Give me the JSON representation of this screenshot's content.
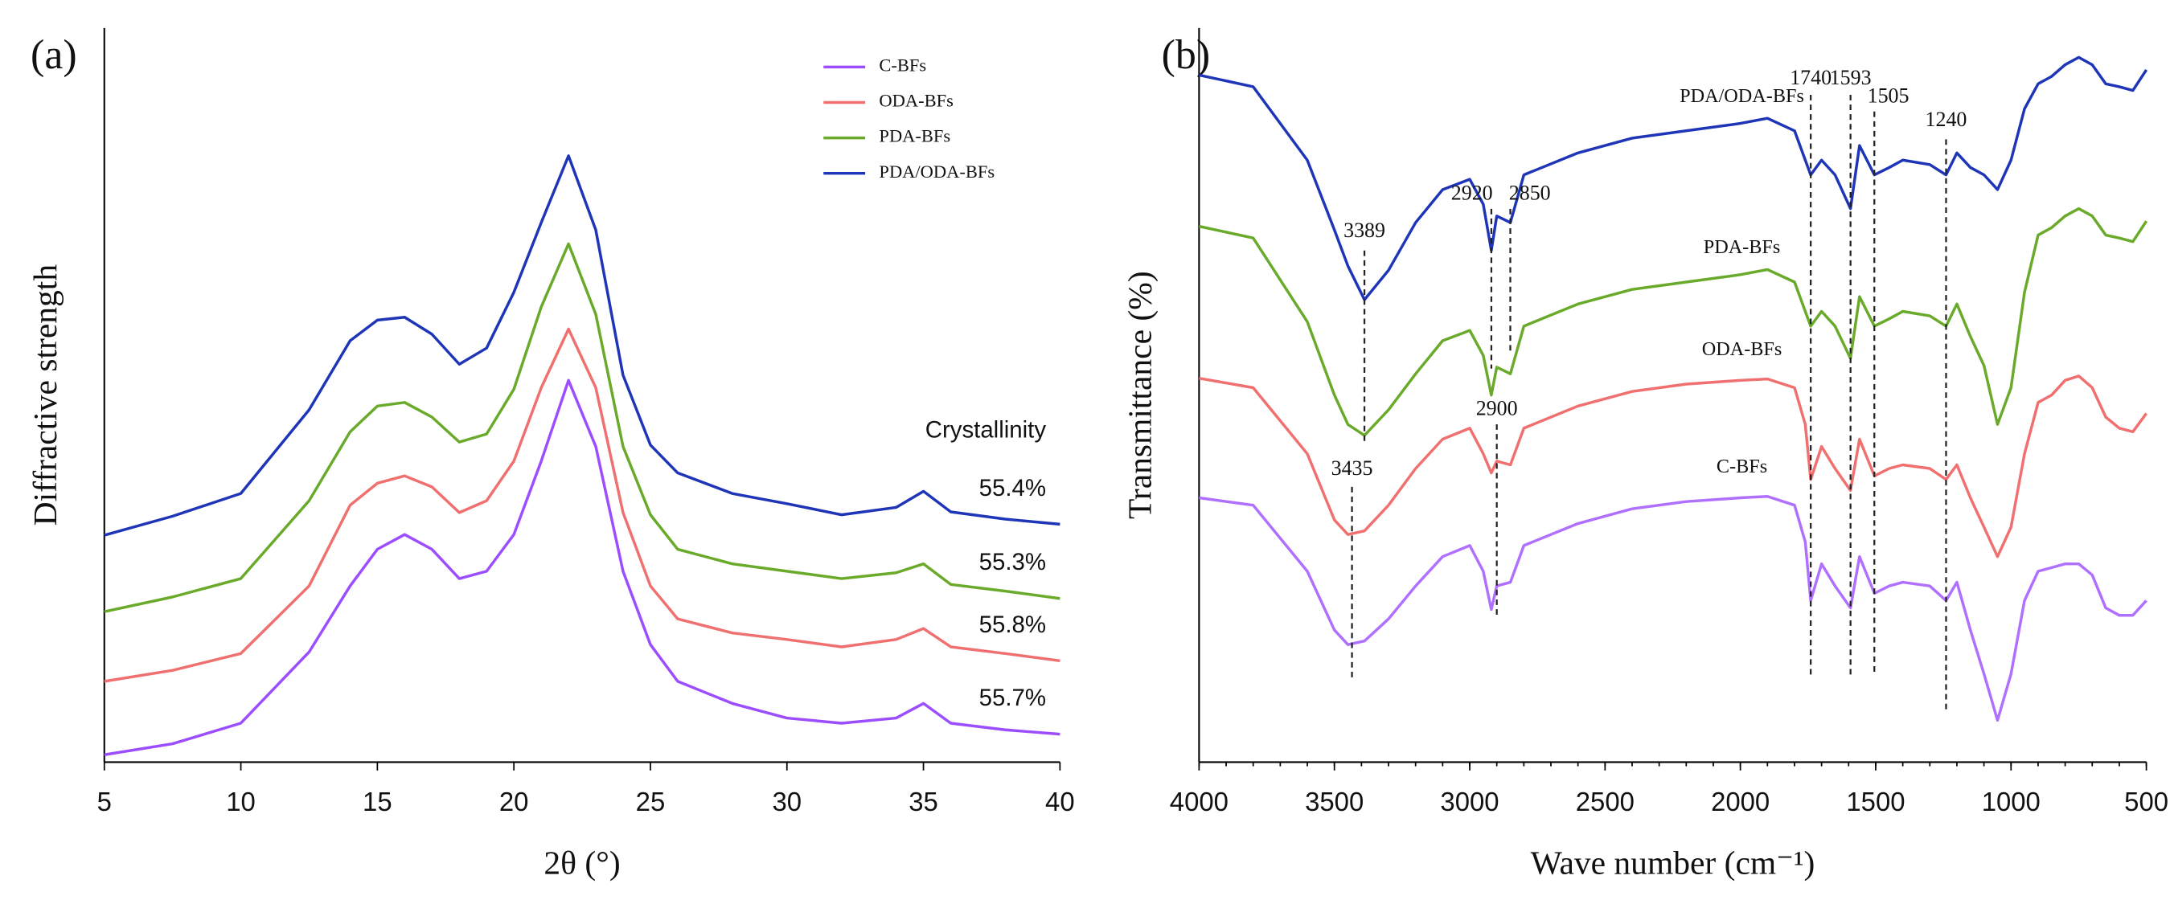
{
  "chart_data": [
    {
      "type": "line",
      "panel_label": "(a)",
      "xlabel": "2θ (°)",
      "ylabel": "Diffractive strength",
      "xlim": [
        5,
        40
      ],
      "xticks": [
        5,
        10,
        15,
        20,
        25,
        30,
        35,
        40
      ],
      "ylim": [
        0,
        100
      ],
      "annotation_title": "Crystallinity",
      "x": [
        5,
        7.5,
        10,
        12.5,
        14,
        15,
        16,
        17,
        18,
        19,
        20,
        21,
        22,
        23,
        24,
        25,
        26,
        28,
        30,
        32,
        34,
        35,
        36,
        38,
        40
      ],
      "series": [
        {
          "name": "C-BFs",
          "color": "#9b4dff",
          "crystallinity_label": "55.7%",
          "values": [
            1,
            2.5,
            5.3,
            15,
            24,
            29,
            31,
            29,
            25,
            26,
            31,
            41,
            52,
            43,
            26,
            16,
            11,
            8,
            6,
            5.3,
            6,
            8,
            5.3,
            4.4,
            3.8
          ]
        },
        {
          "name": "ODA-BFs",
          "color": "#f07070",
          "crystallinity_label": "55.8%",
          "values": [
            11,
            12.5,
            14.8,
            24,
            35,
            38,
            39,
            37.5,
            34,
            35.6,
            41,
            51,
            59,
            51,
            34,
            24,
            19.5,
            17.6,
            16.7,
            15.7,
            16.7,
            18.2,
            15.7,
            14.8,
            13.8
          ]
        },
        {
          "name": "PDA-BFs",
          "color": "#6aaa2a",
          "crystallinity_label": "55.3%",
          "values": [
            20.5,
            22.5,
            25,
            35.6,
            45,
            48.5,
            49,
            47,
            43.6,
            44.7,
            50.8,
            62,
            70.6,
            61,
            43,
            33.7,
            29,
            27,
            26,
            25,
            25.8,
            27,
            24.2,
            23.3,
            22.3
          ]
        },
        {
          "name": "PDA/ODA-BFs",
          "color": "#1f35b8",
          "crystallinity_label": "55.4%",
          "values": [
            30.9,
            33.5,
            36.6,
            48,
            57.4,
            60.2,
            60.6,
            58.3,
            54.2,
            56.4,
            64,
            73.5,
            82.6,
            72.5,
            52.7,
            43.2,
            39.4,
            36.6,
            35.2,
            33.7,
            34.7,
            36.9,
            34.1,
            33.1,
            32.4
          ]
        }
      ]
    },
    {
      "type": "line",
      "panel_label": "(b)",
      "xlabel": "Wave number (cm⁻¹)",
      "ylabel": "Transmittance (%)",
      "xlim": [
        4000,
        500
      ],
      "xticks": [
        4000,
        3500,
        3000,
        2500,
        2000,
        1500,
        1000,
        500
      ],
      "ylim": [
        0,
        100
      ],
      "peaks": [
        3389,
        2920,
        2850,
        1740,
        1593,
        1505,
        1240,
        3435,
        2900
      ],
      "x": [
        4000,
        3800,
        3600,
        3500,
        3450,
        3389,
        3300,
        3200,
        3100,
        3000,
        2950,
        2920,
        2900,
        2850,
        2800,
        2600,
        2400,
        2200,
        2000,
        1900,
        1800,
        1760,
        1740,
        1700,
        1650,
        1593,
        1560,
        1505,
        1450,
        1400,
        1300,
        1240,
        1200,
        1150,
        1100,
        1050,
        1000,
        950,
        900,
        850,
        800,
        750,
        700,
        650,
        600,
        550,
        500
      ],
      "series": [
        {
          "name": "C-BFs",
          "color": "#b070ff",
          "values": [
            36,
            35,
            26,
            18,
            16,
            16.5,
            19.5,
            24,
            28,
            29.5,
            26,
            20.8,
            24,
            24.5,
            29.5,
            32.5,
            34.5,
            35.5,
            36,
            36.2,
            35,
            30,
            22,
            27,
            24,
            21,
            28,
            23,
            24,
            24.5,
            24,
            22,
            24.5,
            18,
            12,
            5.7,
            12,
            22,
            26,
            26.5,
            27,
            27,
            25.5,
            21,
            20,
            20,
            22
          ]
        },
        {
          "name": "ODA-BFs",
          "color": "#f07070",
          "values": [
            52.3,
            51,
            42,
            33,
            31,
            31.5,
            35,
            40,
            44,
            45.5,
            42,
            39.4,
            41,
            40.5,
            45.5,
            48.5,
            50.5,
            51.5,
            52,
            52.2,
            51,
            46,
            38.5,
            43,
            40,
            37,
            44,
            39,
            40,
            40.5,
            40,
            38.5,
            40.5,
            36,
            32,
            28,
            32,
            42,
            49,
            50,
            52,
            52.6,
            51,
            47,
            45.5,
            45,
            47.5
          ]
        },
        {
          "name": "PDA-BFs",
          "color": "#6aaa2a",
          "values": [
            73,
            71.4,
            60,
            50,
            46,
            44.5,
            48,
            52.9,
            57.4,
            58.8,
            55.4,
            50,
            53.8,
            52.9,
            59.4,
            62.4,
            64.4,
            65.4,
            66.4,
            67.1,
            65.4,
            61.4,
            59.4,
            61.4,
            59.4,
            55,
            63.4,
            59.4,
            60.4,
            61.4,
            60.8,
            59.4,
            62.4,
            58,
            54,
            46,
            51,
            64,
            71.8,
            72.8,
            74.4,
            75.4,
            74.4,
            71.8,
            71.4,
            70.9,
            73.7
          ]
        },
        {
          "name": "PDA/ODA-BFs",
          "color": "#1f35b8",
          "values": [
            93.6,
            92,
            82,
            72.5,
            67.6,
            63,
            67,
            73.5,
            78,
            79.4,
            76,
            69.7,
            74.4,
            73.5,
            80,
            83,
            85,
            86,
            87,
            87.7,
            86,
            82,
            80,
            82,
            80,
            75.4,
            84,
            80,
            81,
            82,
            81.4,
            80,
            83,
            81,
            80,
            78,
            82,
            89,
            92.4,
            93.4,
            95,
            96,
            95,
            92.4,
            92,
            91.5,
            94.3
          ]
        }
      ]
    }
  ]
}
